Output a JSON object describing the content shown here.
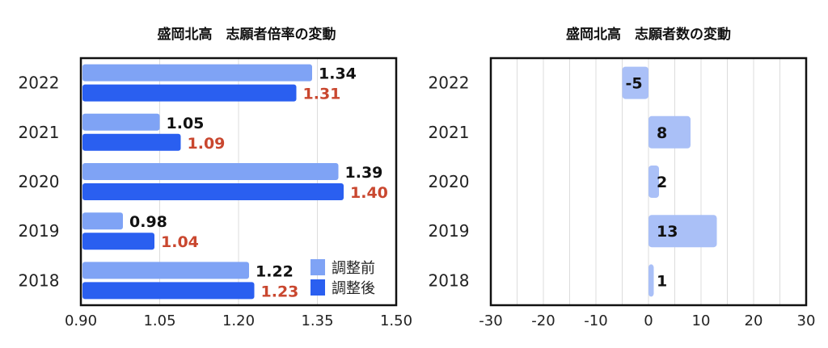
{
  "chart_data": [
    {
      "type": "bar",
      "orientation": "horizontal",
      "title": "盛岡北高　志願者倍率の変動",
      "categories": [
        "2022",
        "2021",
        "2020",
        "2019",
        "2018"
      ],
      "series": [
        {
          "name": "調整前",
          "values": [
            1.34,
            1.05,
            1.39,
            0.98,
            1.22
          ],
          "color": "#7fa3f5",
          "label_color": "#111111"
        },
        {
          "name": "調整後",
          "values": [
            1.31,
            1.09,
            1.4,
            1.04,
            1.23
          ],
          "color": "#2a5ff0",
          "label_color": "#c9472f"
        }
      ],
      "value_labels": [
        [
          "1.34",
          "1.05",
          "1.39",
          "0.98",
          "1.22"
        ],
        [
          "1.31",
          "1.09",
          "1.40",
          "1.04",
          "1.23"
        ]
      ],
      "xlim": [
        0.9,
        1.5
      ],
      "xticks": [
        "0.90",
        "1.05",
        "1.20",
        "1.35",
        "1.50"
      ],
      "xtick_values": [
        0.9,
        1.05,
        1.2,
        1.35,
        1.5
      ],
      "grid": true,
      "legend": "bottom-right"
    },
    {
      "type": "bar",
      "orientation": "horizontal",
      "title": "盛岡北高　志願者数の変動",
      "categories": [
        "2022",
        "2021",
        "2020",
        "2019",
        "2018"
      ],
      "values": [
        -5,
        8,
        2,
        13,
        1
      ],
      "value_labels": [
        "-5",
        "8",
        "2",
        "13",
        "1"
      ],
      "color": "#aac0f7",
      "xlim": [
        -30,
        30
      ],
      "xticks": [
        "-30",
        "-20",
        "-10",
        "0",
        "10",
        "20",
        "30"
      ],
      "xtick_values": [
        -30,
        -20,
        -10,
        0,
        10,
        20,
        30
      ],
      "grid_step": 5,
      "grid": true
    }
  ]
}
